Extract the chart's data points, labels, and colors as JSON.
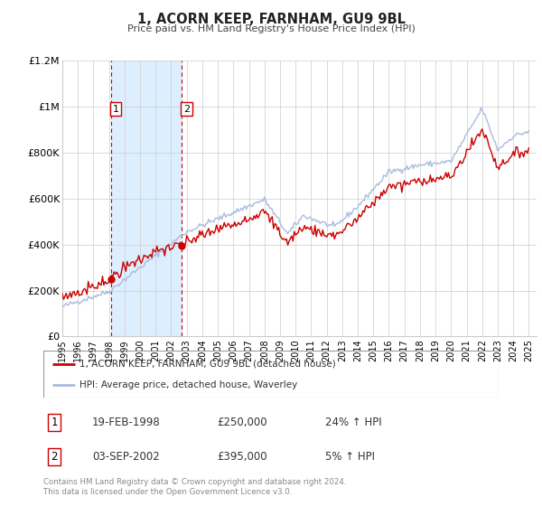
{
  "title": "1, ACORN KEEP, FARNHAM, GU9 9BL",
  "subtitle": "Price paid vs. HM Land Registry's House Price Index (HPI)",
  "ylim": [
    0,
    1200000
  ],
  "xlim_start": 1995.0,
  "xlim_end": 2025.5,
  "background_color": "#ffffff",
  "plot_bg_color": "#ffffff",
  "grid_color": "#cccccc",
  "red_line_color": "#cc0000",
  "blue_line_color": "#aabbdd",
  "shade_color": "#ddeeff",
  "sale1_date": 1998.13,
  "sale1_value": 250000,
  "sale2_date": 2002.67,
  "sale2_value": 395000,
  "legend_entries": [
    "1, ACORN KEEP, FARNHAM, GU9 9BL (detached house)",
    "HPI: Average price, detached house, Waverley"
  ],
  "table_rows": [
    {
      "num": "1",
      "date": "19-FEB-1998",
      "price": "£250,000",
      "hpi": "24% ↑ HPI"
    },
    {
      "num": "2",
      "date": "03-SEP-2002",
      "price": "£395,000",
      "hpi": "5% ↑ HPI"
    }
  ],
  "footer": "Contains HM Land Registry data © Crown copyright and database right 2024.\nThis data is licensed under the Open Government Licence v3.0.",
  "yticks": [
    0,
    200000,
    400000,
    600000,
    800000,
    1000000,
    1200000
  ],
  "ytick_labels": [
    "£0",
    "£200K",
    "£400K",
    "£600K",
    "£800K",
    "£1M",
    "£1.2M"
  ],
  "xticks": [
    1995,
    1996,
    1997,
    1998,
    1999,
    2000,
    2001,
    2002,
    2003,
    2004,
    2005,
    2006,
    2007,
    2008,
    2009,
    2010,
    2011,
    2012,
    2013,
    2014,
    2015,
    2016,
    2017,
    2018,
    2019,
    2020,
    2021,
    2022,
    2023,
    2024,
    2025
  ]
}
